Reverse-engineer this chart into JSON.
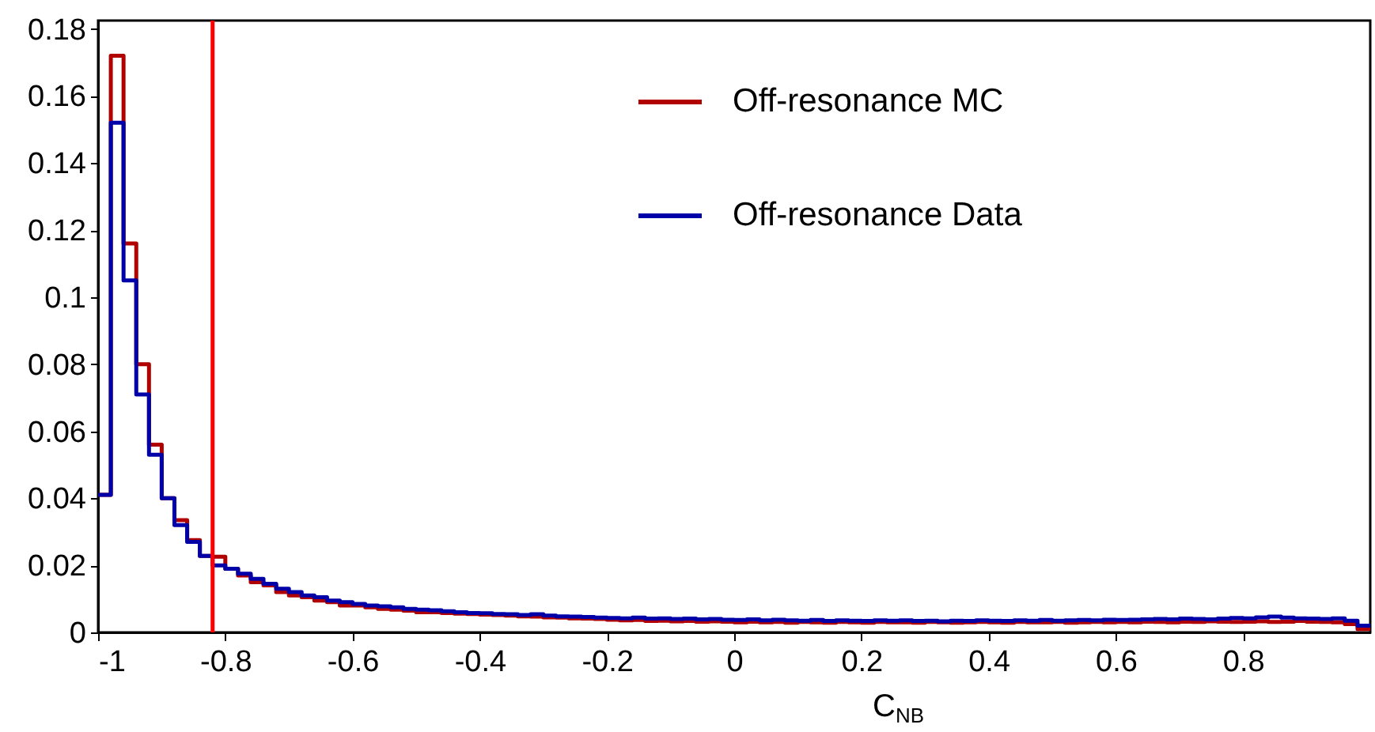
{
  "chart_data": {
    "type": "histogram",
    "xlabel": "C$_{NB}$",
    "bins": [
      -1.0,
      -0.98,
      -0.96,
      -0.94,
      -0.92,
      -0.9,
      -0.88,
      -0.86,
      -0.84,
      -0.82,
      -0.8,
      -0.78,
      -0.76,
      -0.74,
      -0.72,
      -0.7,
      -0.68,
      -0.66,
      -0.64,
      -0.62,
      -0.6,
      -0.58,
      -0.56,
      -0.54,
      -0.52,
      -0.5,
      -0.48,
      -0.46,
      -0.44,
      -0.42,
      -0.4,
      -0.38,
      -0.36,
      -0.34,
      -0.32,
      -0.3,
      -0.28,
      -0.26,
      -0.24,
      -0.22,
      -0.2,
      -0.18,
      -0.16,
      -0.14,
      -0.12,
      -0.1,
      -0.08,
      -0.06,
      -0.04,
      -0.02,
      0.0,
      0.02,
      0.04,
      0.06,
      0.08,
      0.1,
      0.12,
      0.14,
      0.16,
      0.18,
      0.2,
      0.22,
      0.24,
      0.26,
      0.28,
      0.3,
      0.32,
      0.34,
      0.36,
      0.38,
      0.4,
      0.42,
      0.44,
      0.46,
      0.48,
      0.5,
      0.52,
      0.54,
      0.56,
      0.58,
      0.6,
      0.62,
      0.64,
      0.66,
      0.68,
      0.7,
      0.72,
      0.74,
      0.76,
      0.78,
      0.8,
      0.82,
      0.84,
      0.86,
      0.88,
      0.9,
      0.92,
      0.94,
      0.96,
      0.98,
      1.0
    ],
    "series": [
      {
        "name": "Off-resonance MC",
        "color": "#b00000",
        "values": [
          0.041,
          0.172,
          0.116,
          0.08,
          0.056,
          0.04,
          0.0335,
          0.0275,
          0.0228,
          0.0226,
          0.019,
          0.017,
          0.015,
          0.014,
          0.012,
          0.011,
          0.0105,
          0.0095,
          0.009,
          0.008,
          0.008,
          0.0075,
          0.007,
          0.0068,
          0.0065,
          0.006,
          0.006,
          0.0058,
          0.0056,
          0.0055,
          0.0053,
          0.0052,
          0.005,
          0.0048,
          0.0047,
          0.0045,
          0.0044,
          0.0042,
          0.0041,
          0.004,
          0.0038,
          0.0036,
          0.0037,
          0.0034,
          0.0035,
          0.0033,
          0.0034,
          0.0032,
          0.0033,
          0.0032,
          0.003,
          0.0032,
          0.003,
          0.0031,
          0.0029,
          0.0031,
          0.003,
          0.0029,
          0.0031,
          0.003,
          0.0029,
          0.0031,
          0.003,
          0.003,
          0.0029,
          0.0031,
          0.003,
          0.0029,
          0.003,
          0.0031,
          0.003,
          0.0029,
          0.0031,
          0.003,
          0.003,
          0.0031,
          0.0029,
          0.003,
          0.0031,
          0.003,
          0.0031,
          0.003,
          0.0032,
          0.0031,
          0.003,
          0.0032,
          0.0031,
          0.0033,
          0.0032,
          0.0031,
          0.0032,
          0.0033,
          0.0031,
          0.0032,
          0.0034,
          0.0032,
          0.0031,
          0.003,
          0.0025,
          0.001
        ]
      },
      {
        "name": "Off-resonance Data",
        "color": "#0000a8",
        "values": [
          0.041,
          0.152,
          0.105,
          0.071,
          0.053,
          0.04,
          0.032,
          0.027,
          0.0228,
          0.02,
          0.019,
          0.0175,
          0.016,
          0.0145,
          0.013,
          0.012,
          0.011,
          0.0105,
          0.0095,
          0.009,
          0.0085,
          0.008,
          0.0078,
          0.0075,
          0.007,
          0.0068,
          0.0066,
          0.0063,
          0.006,
          0.0058,
          0.0057,
          0.0055,
          0.0054,
          0.0052,
          0.0054,
          0.005,
          0.0048,
          0.0047,
          0.0046,
          0.0044,
          0.0043,
          0.0042,
          0.0044,
          0.0041,
          0.0042,
          0.004,
          0.0041,
          0.0039,
          0.004,
          0.0038,
          0.0037,
          0.0039,
          0.0036,
          0.0038,
          0.0036,
          0.0035,
          0.0037,
          0.0034,
          0.0036,
          0.0035,
          0.0034,
          0.0036,
          0.0035,
          0.0036,
          0.0034,
          0.0035,
          0.0033,
          0.0035,
          0.0034,
          0.0036,
          0.0035,
          0.0034,
          0.0036,
          0.0035,
          0.0037,
          0.0035,
          0.0036,
          0.0037,
          0.0036,
          0.0038,
          0.0037,
          0.0038,
          0.0039,
          0.004,
          0.0039,
          0.0041,
          0.004,
          0.0039,
          0.0041,
          0.0043,
          0.0042,
          0.0045,
          0.0047,
          0.0044,
          0.0042,
          0.0041,
          0.004,
          0.0042,
          0.0035,
          0.002
        ]
      }
    ],
    "xlim": [
      -1,
      1
    ],
    "ylim": [
      0,
      0.1825
    ],
    "xticks": [
      -1,
      -0.8,
      -0.6,
      -0.4,
      -0.2,
      0,
      0.2,
      0.4,
      0.6,
      0.8
    ],
    "yticks": [
      0,
      0.02,
      0.04,
      0.06,
      0.08,
      0.1,
      0.12,
      0.14,
      0.16,
      0.18
    ],
    "ref_lines": [
      {
        "axis": "x",
        "value": -0.82,
        "color": "#ff0000"
      }
    ],
    "grid": false,
    "legend": "top right"
  }
}
